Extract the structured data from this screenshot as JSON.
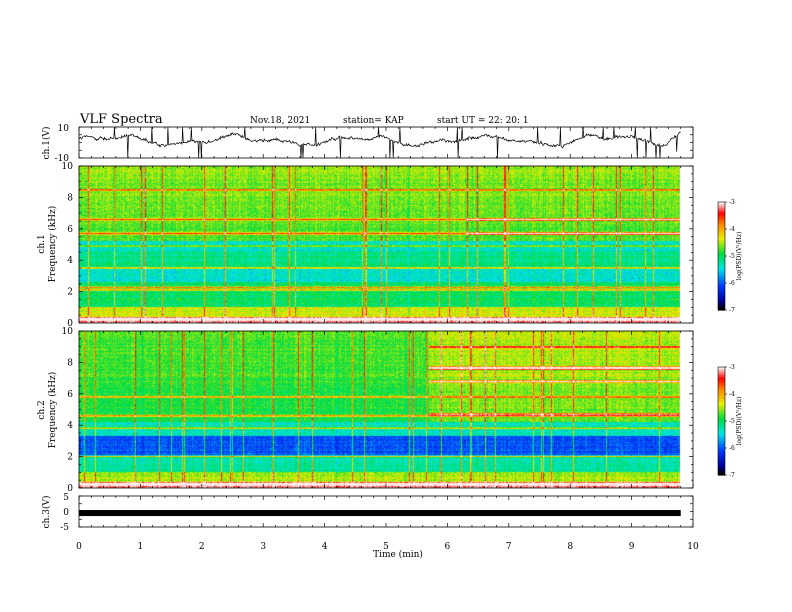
{
  "header": {
    "title": "VLF Spectra",
    "date": "Nov.18, 2021",
    "station": "station= KAP",
    "start": "start  UT  =   22: 20: 1"
  },
  "chart_data": [
    {
      "type": "line",
      "panel": "ch1-waveform",
      "ylabel": "ch.1(V)",
      "ylim": [
        -10,
        10
      ],
      "yticks": [
        "10",
        "-10"
      ],
      "xlim": [
        0,
        10
      ],
      "color": "#000000"
    },
    {
      "type": "heatmap",
      "panel": "ch1-spectrogram",
      "ylabel": "ch.1\nFrequency  (kHz)",
      "ylim": [
        0,
        10
      ],
      "yticks": [
        "0",
        "2",
        "4",
        "6",
        "8",
        "10"
      ],
      "data_end_min": 9.8,
      "colorbar": {
        "label": "log(PSD)(V²/Hz)",
        "range": [
          -7,
          -3
        ],
        "ticks": [
          "-3",
          "-4",
          "-5",
          "-6",
          "-7"
        ]
      },
      "emission_bands_khz": [
        0.2,
        2.1,
        2.25,
        3.5,
        4.9,
        5.7,
        6.6,
        8.5
      ],
      "late_bands": {
        "start_min": 6.3,
        "freqs_khz": [
          6.6,
          5.7
        ]
      }
    },
    {
      "type": "heatmap",
      "panel": "ch2-spectrogram",
      "ylabel": "ch.2\nFrequency  (kHz)",
      "ylim": [
        0,
        10
      ],
      "yticks": [
        "0",
        "2",
        "4",
        "6",
        "8",
        "10"
      ],
      "data_end_min": 9.8,
      "colorbar": {
        "label": "log(PSD)(V²/Hz)",
        "range": [
          -7,
          -3
        ],
        "ticks": [
          "-3",
          "-4",
          "-5",
          "-6",
          "-7"
        ]
      },
      "emission_bands_khz": [
        0.2,
        2.0,
        3.8,
        4.6,
        5.8
      ],
      "late_bands": {
        "start_min": 5.7,
        "freqs_khz": [
          9.0,
          7.7,
          7.6,
          6.8,
          4.7
        ]
      }
    },
    {
      "type": "line",
      "panel": "ch3-waveform",
      "ylabel": "ch.3(V)",
      "ylim": [
        -5,
        5
      ],
      "yticks": [
        "5",
        "0",
        "-5"
      ],
      "level": -0.5,
      "data_end_min": 9.8,
      "color": "#000000"
    }
  ],
  "xaxis": {
    "label": "Time  (min)",
    "range": [
      0,
      10
    ],
    "ticks": [
      "0",
      "1",
      "2",
      "3",
      "4",
      "5",
      "6",
      "7",
      "8",
      "9",
      "10"
    ]
  }
}
